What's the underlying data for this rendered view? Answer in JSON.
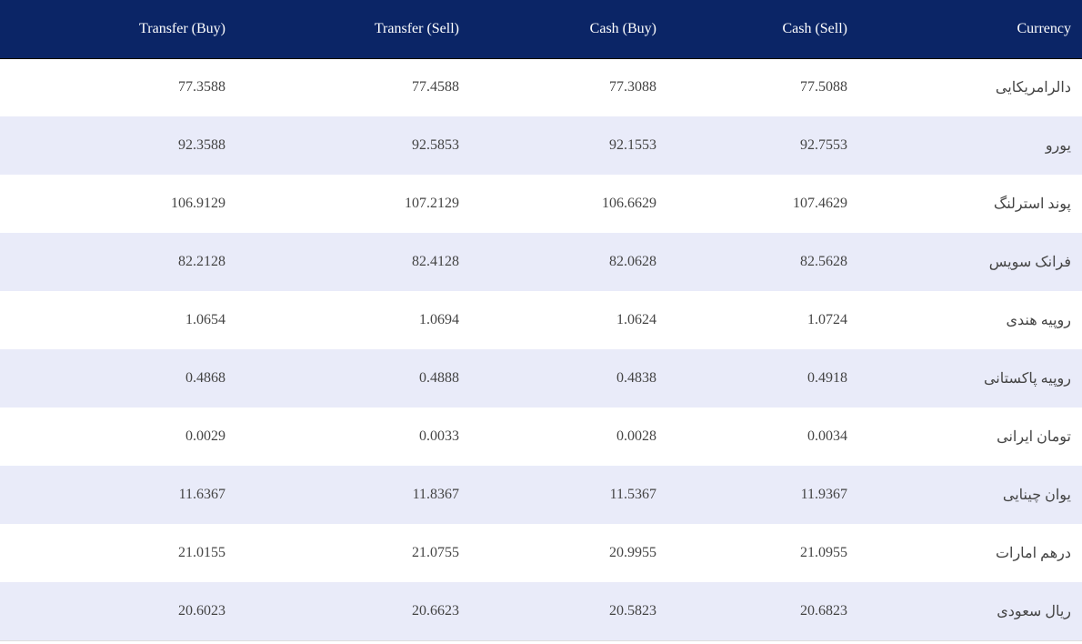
{
  "table": {
    "header": [
      "Currency",
      "Cash (Sell)",
      "Cash (Buy)",
      "Transfer (Sell)",
      "Transfer (Buy)"
    ],
    "rows": [
      [
        "دالرامریکایی",
        "77.5088",
        "77.3088",
        "77.4588",
        "77.3588"
      ],
      [
        "یورو",
        "92.7553",
        "92.1553",
        "92.5853",
        "92.3588"
      ],
      [
        "پوند استرلنگ",
        "107.4629",
        "106.6629",
        "107.2129",
        "106.9129"
      ],
      [
        "فرانک سویس",
        "82.5628",
        "82.0628",
        "82.4128",
        "82.2128"
      ],
      [
        "روپیه هندی",
        "1.0724",
        "1.0624",
        "1.0694",
        "1.0654"
      ],
      [
        "روپیه پاکستانی",
        "0.4918",
        "0.4838",
        "0.4888",
        "0.4868"
      ],
      [
        "تومان ایرانی",
        "0.0034",
        "0.0028",
        "0.0033",
        "0.0029"
      ],
      [
        "یوان چینایی",
        "11.9367",
        "11.5367",
        "11.8367",
        "11.6367"
      ],
      [
        "درهم امارات",
        "21.0955",
        "20.9955",
        "21.0755",
        "21.0155"
      ],
      [
        "ریال سعودی",
        "20.6823",
        "20.5823",
        "20.6623",
        "20.6023"
      ]
    ]
  }
}
